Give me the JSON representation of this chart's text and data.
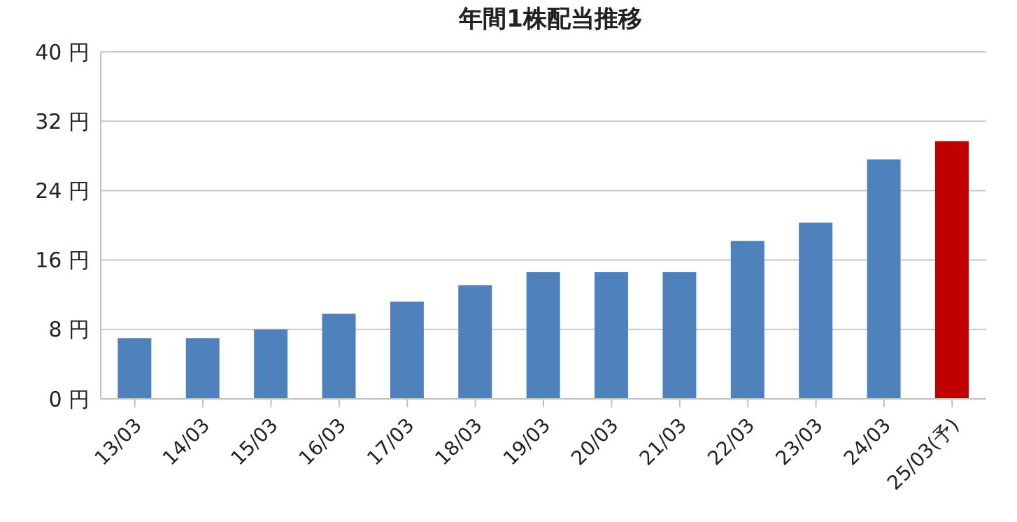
{
  "chart_data": {
    "type": "bar",
    "title": "年間1株配当推移",
    "categories": [
      "13/03",
      "14/03",
      "15/03",
      "16/03",
      "17/03",
      "18/03",
      "19/03",
      "20/03",
      "21/03",
      "22/03",
      "23/03",
      "24/03",
      "25/03(予)"
    ],
    "values": [
      7,
      7,
      8,
      9.8,
      11.2,
      13.1,
      14.6,
      14.6,
      14.6,
      18.2,
      20.3,
      27.6,
      29.7
    ],
    "colors": [
      "#4f81bd",
      "#4f81bd",
      "#4f81bd",
      "#4f81bd",
      "#4f81bd",
      "#4f81bd",
      "#4f81bd",
      "#4f81bd",
      "#4f81bd",
      "#4f81bd",
      "#4f81bd",
      "#4f81bd",
      "#c00000"
    ],
    "ylim": [
      0,
      40
    ],
    "yticks": [
      {
        "value": 0,
        "label": "0 円"
      },
      {
        "value": 8,
        "label": "8 円"
      },
      {
        "value": 16,
        "label": "16 円"
      },
      {
        "value": 24,
        "label": "24 円"
      },
      {
        "value": 32,
        "label": "32 円"
      },
      {
        "value": 40,
        "label": "40 円"
      }
    ],
    "grid": "y"
  }
}
